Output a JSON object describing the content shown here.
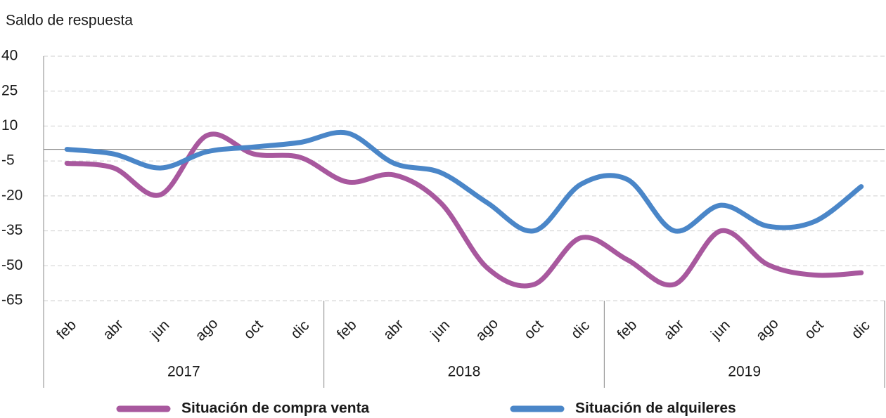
{
  "chart_data": {
    "type": "line",
    "y_axis_label": "Saldo de respuesta",
    "categories": [
      "feb",
      "abr",
      "jun",
      "ago",
      "oct",
      "dic",
      "feb",
      "abr",
      "jun",
      "ago",
      "oct",
      "dic",
      "feb",
      "abr",
      "jun",
      "ago",
      "oct",
      "dic"
    ],
    "years": [
      "2017",
      "2018",
      "2019"
    ],
    "series": [
      {
        "name": "Situación de compra venta",
        "color": "#a8589e",
        "values": [
          -6,
          -8,
          -19.5,
          6,
          -2,
          -3.5,
          -14,
          -11,
          -23,
          -51,
          -58,
          -38,
          -47.5,
          -58,
          -35,
          -49.5,
          -54,
          -53
        ]
      },
      {
        "name": "Situación de alquileres",
        "color": "#4a86c8",
        "values": [
          0,
          -2,
          -8,
          -1,
          1,
          3,
          7,
          -6,
          -10,
          -23,
          -35,
          -15,
          -13,
          -35,
          -24,
          -33,
          -31,
          -16
        ]
      }
    ],
    "ylim": [
      -65,
      40
    ],
    "yticks": [
      40,
      25,
      10,
      -5,
      -20,
      -35,
      -50,
      -65
    ],
    "grid": true
  }
}
